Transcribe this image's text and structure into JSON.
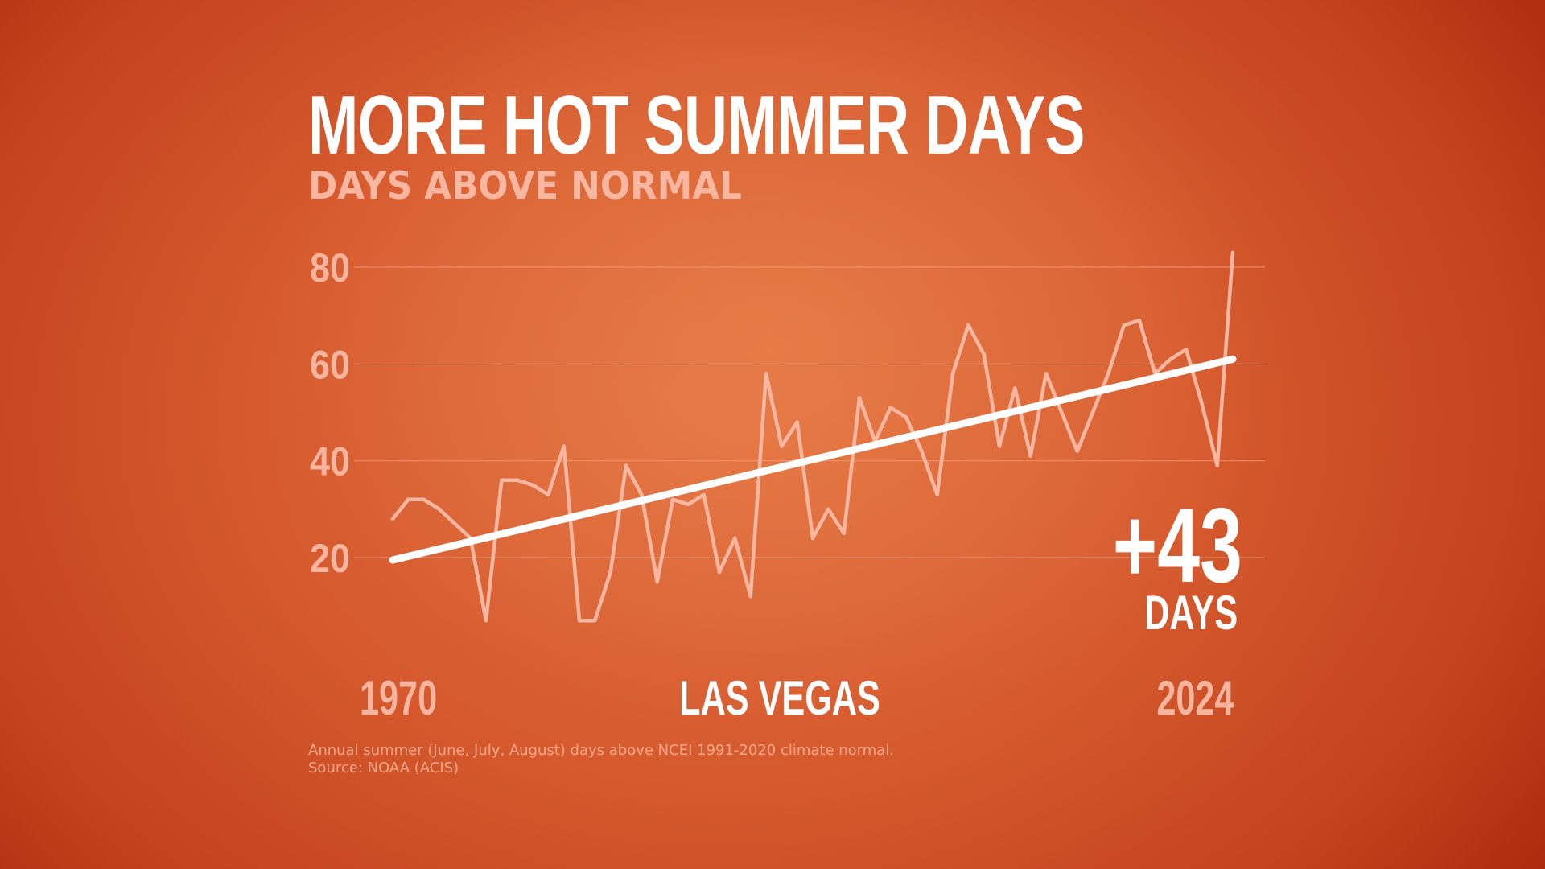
{
  "title": "MORE HOT SUMMER DAYS",
  "subtitle": "DAYS ABOVE NORMAL",
  "highlight": {
    "value": "+43",
    "unit": "DAYS"
  },
  "location": "LAS VEGAS",
  "footnote": "Annual summer (June, July, August) days above NCEI 1991-2020 climate normal.",
  "source": "Source: NOAA (ACIS)",
  "colors": {
    "background": "#d65a2e",
    "series_line": "#f9b7a2",
    "trend_line": "#ffffff",
    "gridline": "#f0a080"
  },
  "chart_data": {
    "type": "line",
    "title": "MORE HOT SUMMER DAYS",
    "subtitle": "DAYS ABOVE NORMAL",
    "xlabel": "",
    "ylabel": "",
    "x_tick_labels": [
      "1970",
      "2024"
    ],
    "y_ticks": [
      20,
      40,
      60,
      80
    ],
    "ylim": [
      0,
      85
    ],
    "xlim": [
      1970,
      2024
    ],
    "grid": true,
    "x": [
      1970,
      1971,
      1972,
      1973,
      1974,
      1975,
      1976,
      1977,
      1978,
      1979,
      1980,
      1981,
      1982,
      1983,
      1984,
      1985,
      1986,
      1987,
      1988,
      1989,
      1990,
      1991,
      1992,
      1993,
      1994,
      1995,
      1996,
      1997,
      1998,
      1999,
      2000,
      2001,
      2002,
      2003,
      2004,
      2005,
      2006,
      2007,
      2008,
      2009,
      2010,
      2011,
      2012,
      2013,
      2014,
      2015,
      2016,
      2017,
      2018,
      2019,
      2020,
      2021,
      2022,
      2023,
      2024
    ],
    "series": [
      {
        "values": [
          28,
          32,
          32,
          30,
          27,
          24,
          7,
          36,
          36,
          35,
          33,
          43,
          7,
          7,
          17,
          39,
          33,
          15,
          32,
          31,
          33,
          17,
          24,
          12,
          58,
          43,
          48,
          24,
          30,
          25,
          53,
          44,
          51,
          49,
          42,
          33,
          58,
          68,
          62,
          43,
          55,
          41,
          58,
          50,
          42,
          50,
          58,
          68,
          69,
          58,
          61,
          63,
          52,
          39,
          83
        ]
      },
      {
        "trend": true,
        "start": [
          1970,
          19.5
        ],
        "end": [
          2024,
          61
        ]
      }
    ],
    "annotation": {
      "value": "+43",
      "unit": "DAYS"
    }
  }
}
